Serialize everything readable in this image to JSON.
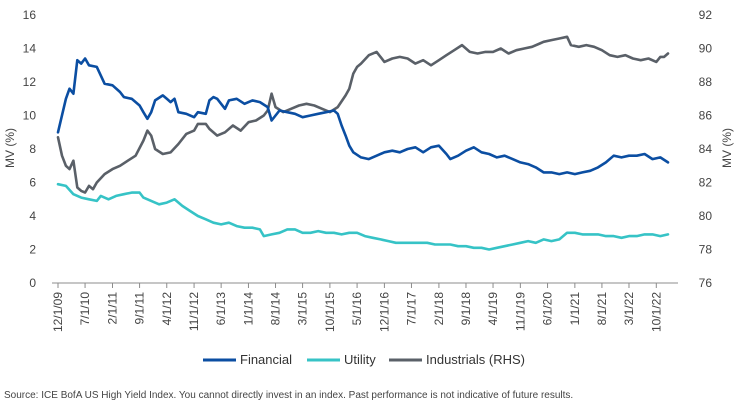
{
  "source_note": "Source: ICE BofA US High Yield Index. You cannot directly invest in an index. Past performance is not indicative of future results.",
  "chart_data": {
    "type": "line",
    "title": "",
    "xlabel": "",
    "ylabel": "MV (%)",
    "ylabel_right": "MV (%)",
    "ylim": [
      0,
      16
    ],
    "ylim_right": [
      76,
      92
    ],
    "yticks": [
      0,
      2,
      4,
      6,
      8,
      10,
      12,
      14,
      16
    ],
    "yticks_right": [
      76,
      78,
      80,
      82,
      84,
      86,
      88,
      90,
      92
    ],
    "grid": false,
    "legend_position": "bottom",
    "x_tick_labels": [
      "12/1/09",
      "7/1/10",
      "2/1/11",
      "9/1/11",
      "4/1/12",
      "11/1/12",
      "6/1/13",
      "1/1/14",
      "8/1/14",
      "3/1/15",
      "10/1/15",
      "5/1/16",
      "12/1/16",
      "7/1/17",
      "2/1/18",
      "9/1/18",
      "4/1/19",
      "11/1/19",
      "6/1/20",
      "1/1/21",
      "8/1/21",
      "3/1/22",
      "10/1/22"
    ],
    "series": [
      {
        "name": "Financial",
        "axis": "left",
        "color": "#0B4EA2",
        "points": [
          [
            "12/1/09",
            9.0
          ],
          [
            "2/1/10",
            11.0
          ],
          [
            "3/1/10",
            11.6
          ],
          [
            "4/1/10",
            11.3
          ],
          [
            "5/1/10",
            13.3
          ],
          [
            "6/1/10",
            13.1
          ],
          [
            "7/1/10",
            13.4
          ],
          [
            "8/1/10",
            13.0
          ],
          [
            "10/1/10",
            12.9
          ],
          [
            "12/1/10",
            11.9
          ],
          [
            "2/1/11",
            11.8
          ],
          [
            "4/1/11",
            11.4
          ],
          [
            "5/1/11",
            11.1
          ],
          [
            "7/1/11",
            11.0
          ],
          [
            "9/1/11",
            10.6
          ],
          [
            "10/1/11",
            10.2
          ],
          [
            "11/1/11",
            9.8
          ],
          [
            "12/1/11",
            10.2
          ],
          [
            "1/1/12",
            10.9
          ],
          [
            "3/1/12",
            11.2
          ],
          [
            "4/1/12",
            11.0
          ],
          [
            "5/1/12",
            10.8
          ],
          [
            "6/1/12",
            11.0
          ],
          [
            "7/1/12",
            10.2
          ],
          [
            "9/1/12",
            10.1
          ],
          [
            "11/1/12",
            9.9
          ],
          [
            "12/1/12",
            10.2
          ],
          [
            "2/1/13",
            10.1
          ],
          [
            "3/1/13",
            10.9
          ],
          [
            "4/1/13",
            11.1
          ],
          [
            "5/1/13",
            11.0
          ],
          [
            "6/1/13",
            10.7
          ],
          [
            "7/1/13",
            10.4
          ],
          [
            "8/1/13",
            10.9
          ],
          [
            "10/1/13",
            11.0
          ],
          [
            "12/1/13",
            10.7
          ],
          [
            "2/1/14",
            10.9
          ],
          [
            "4/1/14",
            10.8
          ],
          [
            "6/1/14",
            10.5
          ],
          [
            "7/1/14",
            9.7
          ],
          [
            "9/1/14",
            10.3
          ],
          [
            "11/1/14",
            10.2
          ],
          [
            "1/1/15",
            10.1
          ],
          [
            "3/1/15",
            9.9
          ],
          [
            "5/1/15",
            10.0
          ],
          [
            "7/1/15",
            10.1
          ],
          [
            "9/1/15",
            10.2
          ],
          [
            "11/1/15",
            10.3
          ],
          [
            "12/1/15",
            10.1
          ],
          [
            "1/1/16",
            9.4
          ],
          [
            "2/1/16",
            8.8
          ],
          [
            "3/1/16",
            8.2
          ],
          [
            "4/1/16",
            7.8
          ],
          [
            "6/1/16",
            7.5
          ],
          [
            "8/1/16",
            7.4
          ],
          [
            "10/1/16",
            7.6
          ],
          [
            "12/1/16",
            7.8
          ],
          [
            "2/1/17",
            7.9
          ],
          [
            "4/1/17",
            7.8
          ],
          [
            "6/1/17",
            8.0
          ],
          [
            "8/1/17",
            8.1
          ],
          [
            "10/1/17",
            7.8
          ],
          [
            "12/1/17",
            8.1
          ],
          [
            "2/1/18",
            8.2
          ],
          [
            "4/1/18",
            7.7
          ],
          [
            "5/1/18",
            7.4
          ],
          [
            "7/1/18",
            7.6
          ],
          [
            "9/1/18",
            7.9
          ],
          [
            "11/1/18",
            8.1
          ],
          [
            "1/1/19",
            7.8
          ],
          [
            "3/1/19",
            7.7
          ],
          [
            "5/1/19",
            7.5
          ],
          [
            "7/1/19",
            7.6
          ],
          [
            "9/1/19",
            7.4
          ],
          [
            "11/1/19",
            7.2
          ],
          [
            "1/1/20",
            7.1
          ],
          [
            "3/1/20",
            6.9
          ],
          [
            "5/1/20",
            6.6
          ],
          [
            "7/1/20",
            6.6
          ],
          [
            "9/1/20",
            6.5
          ],
          [
            "11/1/20",
            6.6
          ],
          [
            "1/1/21",
            6.5
          ],
          [
            "3/1/21",
            6.6
          ],
          [
            "5/1/21",
            6.7
          ],
          [
            "7/1/21",
            6.9
          ],
          [
            "9/1/21",
            7.2
          ],
          [
            "11/1/21",
            7.6
          ],
          [
            "1/1/22",
            7.5
          ],
          [
            "3/1/22",
            7.6
          ],
          [
            "5/1/22",
            7.6
          ],
          [
            "7/1/22",
            7.7
          ],
          [
            "9/1/22",
            7.4
          ],
          [
            "11/1/22",
            7.5
          ],
          [
            "1/1/23",
            7.2
          ]
        ]
      },
      {
        "name": "Utility",
        "axis": "left",
        "color": "#36C3C6",
        "points": [
          [
            "12/1/09",
            5.9
          ],
          [
            "2/1/10",
            5.8
          ],
          [
            "4/1/10",
            5.3
          ],
          [
            "6/1/10",
            5.1
          ],
          [
            "8/1/10",
            5.0
          ],
          [
            "10/1/10",
            4.9
          ],
          [
            "11/1/10",
            5.2
          ],
          [
            "1/1/11",
            5.0
          ],
          [
            "3/1/11",
            5.2
          ],
          [
            "5/1/11",
            5.3
          ],
          [
            "7/1/11",
            5.4
          ],
          [
            "9/1/11",
            5.4
          ],
          [
            "10/1/11",
            5.1
          ],
          [
            "12/1/11",
            4.9
          ],
          [
            "2/1/12",
            4.7
          ],
          [
            "4/1/12",
            4.8
          ],
          [
            "6/1/12",
            5.0
          ],
          [
            "8/1/12",
            4.6
          ],
          [
            "10/1/12",
            4.3
          ],
          [
            "12/1/12",
            4.0
          ],
          [
            "2/1/13",
            3.8
          ],
          [
            "4/1/13",
            3.6
          ],
          [
            "6/1/13",
            3.5
          ],
          [
            "8/1/13",
            3.6
          ],
          [
            "10/1/13",
            3.4
          ],
          [
            "12/1/13",
            3.3
          ],
          [
            "2/1/14",
            3.3
          ],
          [
            "4/1/14",
            3.2
          ],
          [
            "5/1/14",
            2.8
          ],
          [
            "7/1/14",
            2.9
          ],
          [
            "9/1/14",
            3.0
          ],
          [
            "11/1/14",
            3.2
          ],
          [
            "1/1/15",
            3.2
          ],
          [
            "3/1/15",
            3.0
          ],
          [
            "5/1/15",
            3.0
          ],
          [
            "7/1/15",
            3.1
          ],
          [
            "9/1/15",
            3.0
          ],
          [
            "11/1/15",
            3.0
          ],
          [
            "1/1/16",
            2.9
          ],
          [
            "3/1/16",
            3.0
          ],
          [
            "5/1/16",
            3.0
          ],
          [
            "7/1/16",
            2.8
          ],
          [
            "9/1/16",
            2.7
          ],
          [
            "11/1/16",
            2.6
          ],
          [
            "1/1/17",
            2.5
          ],
          [
            "3/1/17",
            2.4
          ],
          [
            "5/1/17",
            2.4
          ],
          [
            "7/1/17",
            2.4
          ],
          [
            "9/1/17",
            2.4
          ],
          [
            "11/1/17",
            2.4
          ],
          [
            "1/1/18",
            2.3
          ],
          [
            "3/1/18",
            2.3
          ],
          [
            "5/1/18",
            2.3
          ],
          [
            "7/1/18",
            2.2
          ],
          [
            "9/1/18",
            2.2
          ],
          [
            "11/1/18",
            2.1
          ],
          [
            "1/1/19",
            2.1
          ],
          [
            "3/1/19",
            2.0
          ],
          [
            "5/1/19",
            2.1
          ],
          [
            "7/1/19",
            2.2
          ],
          [
            "9/1/19",
            2.3
          ],
          [
            "11/1/19",
            2.4
          ],
          [
            "1/1/20",
            2.5
          ],
          [
            "3/1/20",
            2.4
          ],
          [
            "5/1/20",
            2.6
          ],
          [
            "7/1/20",
            2.5
          ],
          [
            "9/1/20",
            2.6
          ],
          [
            "11/1/20",
            3.0
          ],
          [
            "1/1/21",
            3.0
          ],
          [
            "3/1/21",
            2.9
          ],
          [
            "5/1/21",
            2.9
          ],
          [
            "7/1/21",
            2.9
          ],
          [
            "9/1/21",
            2.8
          ],
          [
            "11/1/21",
            2.8
          ],
          [
            "1/1/22",
            2.7
          ],
          [
            "3/1/22",
            2.8
          ],
          [
            "5/1/22",
            2.8
          ],
          [
            "7/1/22",
            2.9
          ],
          [
            "9/1/22",
            2.9
          ],
          [
            "11/1/22",
            2.8
          ],
          [
            "1/1/23",
            2.9
          ]
        ]
      },
      {
        "name": "Industrials (RHS)",
        "axis": "right",
        "color": "#5A6068",
        "points": [
          [
            "12/1/09",
            84.7
          ],
          [
            "1/1/10",
            83.6
          ],
          [
            "2/1/10",
            83.0
          ],
          [
            "3/1/10",
            82.8
          ],
          [
            "4/1/10",
            83.3
          ],
          [
            "5/1/10",
            81.7
          ],
          [
            "6/1/10",
            81.5
          ],
          [
            "7/1/10",
            81.4
          ],
          [
            "8/1/10",
            81.8
          ],
          [
            "9/1/10",
            81.6
          ],
          [
            "10/1/10",
            82.0
          ],
          [
            "12/1/10",
            82.5
          ],
          [
            "2/1/11",
            82.8
          ],
          [
            "4/1/11",
            83.0
          ],
          [
            "6/1/11",
            83.3
          ],
          [
            "8/1/11",
            83.6
          ],
          [
            "10/1/11",
            84.5
          ],
          [
            "11/1/11",
            85.1
          ],
          [
            "12/1/11",
            84.8
          ],
          [
            "1/1/12",
            84.0
          ],
          [
            "3/1/12",
            83.7
          ],
          [
            "5/1/12",
            83.8
          ],
          [
            "7/1/12",
            84.3
          ],
          [
            "9/1/12",
            84.9
          ],
          [
            "11/1/12",
            85.1
          ],
          [
            "12/1/12",
            85.5
          ],
          [
            "2/1/13",
            85.5
          ],
          [
            "3/1/13",
            85.2
          ],
          [
            "5/1/13",
            84.8
          ],
          [
            "7/1/13",
            85.0
          ],
          [
            "9/1/13",
            85.4
          ],
          [
            "11/1/13",
            85.1
          ],
          [
            "1/1/14",
            85.6
          ],
          [
            "3/1/14",
            85.7
          ],
          [
            "5/1/14",
            86.0
          ],
          [
            "6/1/14",
            86.3
          ],
          [
            "7/1/14",
            87.3
          ],
          [
            "8/1/14",
            86.5
          ],
          [
            "10/1/14",
            86.2
          ],
          [
            "12/1/14",
            86.4
          ],
          [
            "2/1/15",
            86.6
          ],
          [
            "4/1/15",
            86.7
          ],
          [
            "6/1/15",
            86.6
          ],
          [
            "8/1/15",
            86.4
          ],
          [
            "10/1/15",
            86.2
          ],
          [
            "12/1/15",
            86.5
          ],
          [
            "2/1/16",
            87.2
          ],
          [
            "3/1/16",
            87.6
          ],
          [
            "4/1/16",
            88.5
          ],
          [
            "5/1/16",
            88.9
          ],
          [
            "6/1/16",
            89.1
          ],
          [
            "8/1/16",
            89.6
          ],
          [
            "10/1/16",
            89.8
          ],
          [
            "12/1/16",
            89.2
          ],
          [
            "2/1/17",
            89.4
          ],
          [
            "4/1/17",
            89.5
          ],
          [
            "6/1/17",
            89.4
          ],
          [
            "8/1/17",
            89.1
          ],
          [
            "10/1/17",
            89.3
          ],
          [
            "12/1/17",
            89.0
          ],
          [
            "2/1/18",
            89.3
          ],
          [
            "4/1/18",
            89.6
          ],
          [
            "6/1/18",
            89.9
          ],
          [
            "8/1/18",
            90.2
          ],
          [
            "10/1/18",
            89.8
          ],
          [
            "12/1/18",
            89.7
          ],
          [
            "2/1/19",
            89.8
          ],
          [
            "4/1/19",
            89.8
          ],
          [
            "6/1/19",
            90.0
          ],
          [
            "8/1/19",
            89.7
          ],
          [
            "10/1/19",
            89.9
          ],
          [
            "12/1/19",
            90.0
          ],
          [
            "2/1/20",
            90.1
          ],
          [
            "4/1/20",
            90.3
          ],
          [
            "5/1/20",
            90.4
          ],
          [
            "7/1/20",
            90.5
          ],
          [
            "9/1/20",
            90.6
          ],
          [
            "11/1/20",
            90.7
          ],
          [
            "12/1/20",
            90.2
          ],
          [
            "2/1/21",
            90.1
          ],
          [
            "4/1/21",
            90.2
          ],
          [
            "6/1/21",
            90.1
          ],
          [
            "8/1/21",
            89.9
          ],
          [
            "10/1/21",
            89.6
          ],
          [
            "12/1/21",
            89.5
          ],
          [
            "2/1/22",
            89.6
          ],
          [
            "4/1/22",
            89.4
          ],
          [
            "6/1/22",
            89.3
          ],
          [
            "8/1/22",
            89.4
          ],
          [
            "10/1/22",
            89.2
          ],
          [
            "11/1/22",
            89.5
          ],
          [
            "12/1/22",
            89.5
          ],
          [
            "1/1/23",
            89.7
          ]
        ]
      }
    ]
  }
}
